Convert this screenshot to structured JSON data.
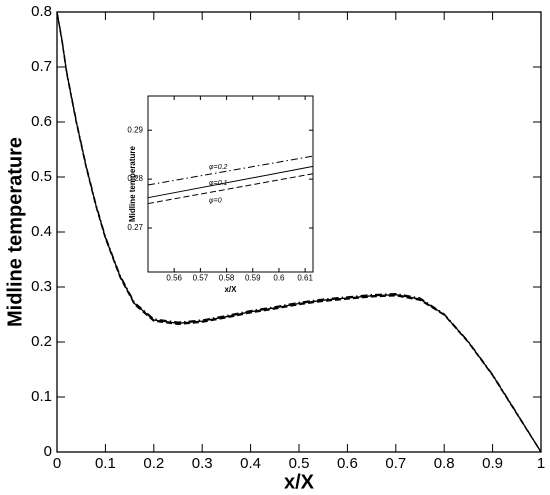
{
  "chart_data": [
    {
      "type": "line",
      "xlabel": "x/X",
      "ylabel": "Midline temperature",
      "xlim": [
        0,
        1
      ],
      "ylim": [
        0,
        0.8
      ],
      "xticks": [
        0,
        0.1,
        0.2,
        0.3,
        0.4,
        0.5,
        0.6,
        0.7,
        0.8,
        0.9,
        1
      ],
      "yticks": [
        0,
        0.1,
        0.2,
        0.3,
        0.4,
        0.5,
        0.6,
        0.7,
        0.8
      ],
      "x": [
        0,
        0.01,
        0.02,
        0.04,
        0.06,
        0.08,
        0.1,
        0.13,
        0.16,
        0.2,
        0.25,
        0.3,
        0.35,
        0.4,
        0.45,
        0.5,
        0.55,
        0.6,
        0.65,
        0.7,
        0.75,
        0.8,
        0.85,
        0.9,
        0.95,
        1
      ],
      "series": [
        {
          "color": "#000000",
          "line_style": "dashdot",
          "values": [
            0.8,
            0.752,
            0.692,
            0.602,
            0.522,
            0.452,
            0.392,
            0.322,
            0.272,
            0.242,
            0.236,
            0.24,
            0.248,
            0.257,
            0.264,
            0.272,
            0.278,
            0.282,
            0.286,
            0.288,
            0.28,
            0.251,
            0.201,
            0.141,
            0.071,
            0
          ]
        },
        {
          "color": "#000000",
          "line_style": "solid",
          "values": [
            0.8,
            0.75,
            0.69,
            0.6,
            0.52,
            0.45,
            0.39,
            0.32,
            0.27,
            0.24,
            0.234,
            0.238,
            0.246,
            0.255,
            0.262,
            0.27,
            0.276,
            0.28,
            0.284,
            0.286,
            0.278,
            0.25,
            0.2,
            0.14,
            0.07,
            0
          ]
        },
        {
          "color": "#000000",
          "line_style": "dashed",
          "values": [
            0.8,
            0.748,
            0.688,
            0.598,
            0.518,
            0.448,
            0.388,
            0.318,
            0.268,
            0.238,
            0.232,
            0.236,
            0.244,
            0.253,
            0.26,
            0.268,
            0.274,
            0.278,
            0.282,
            0.284,
            0.276,
            0.249,
            0.199,
            0.139,
            0.069,
            0
          ]
        }
      ]
    },
    {
      "type": "line",
      "xlabel": "x/X",
      "ylabel": "Midline temperature",
      "xlim": [
        0.55,
        0.613
      ],
      "ylim": [
        0.261,
        0.297
      ],
      "xticks": [
        0.56,
        0.57,
        0.58,
        0.59,
        0.6,
        0.61
      ],
      "yticks": [
        0.27,
        0.28,
        0.29
      ],
      "x": [
        0.55,
        0.613
      ],
      "series": [
        {
          "name": "φ=0.2",
          "color": "#000000",
          "line_style": "dashdot",
          "values": [
            0.2788,
            0.2847
          ]
        },
        {
          "name": "φ=0.1",
          "color": "#000000",
          "line_style": "solid",
          "values": [
            0.2762,
            0.2826
          ]
        },
        {
          "name": "φ=0",
          "color": "#000000",
          "line_style": "dashed",
          "values": [
            0.275,
            0.2811
          ]
        }
      ]
    }
  ]
}
